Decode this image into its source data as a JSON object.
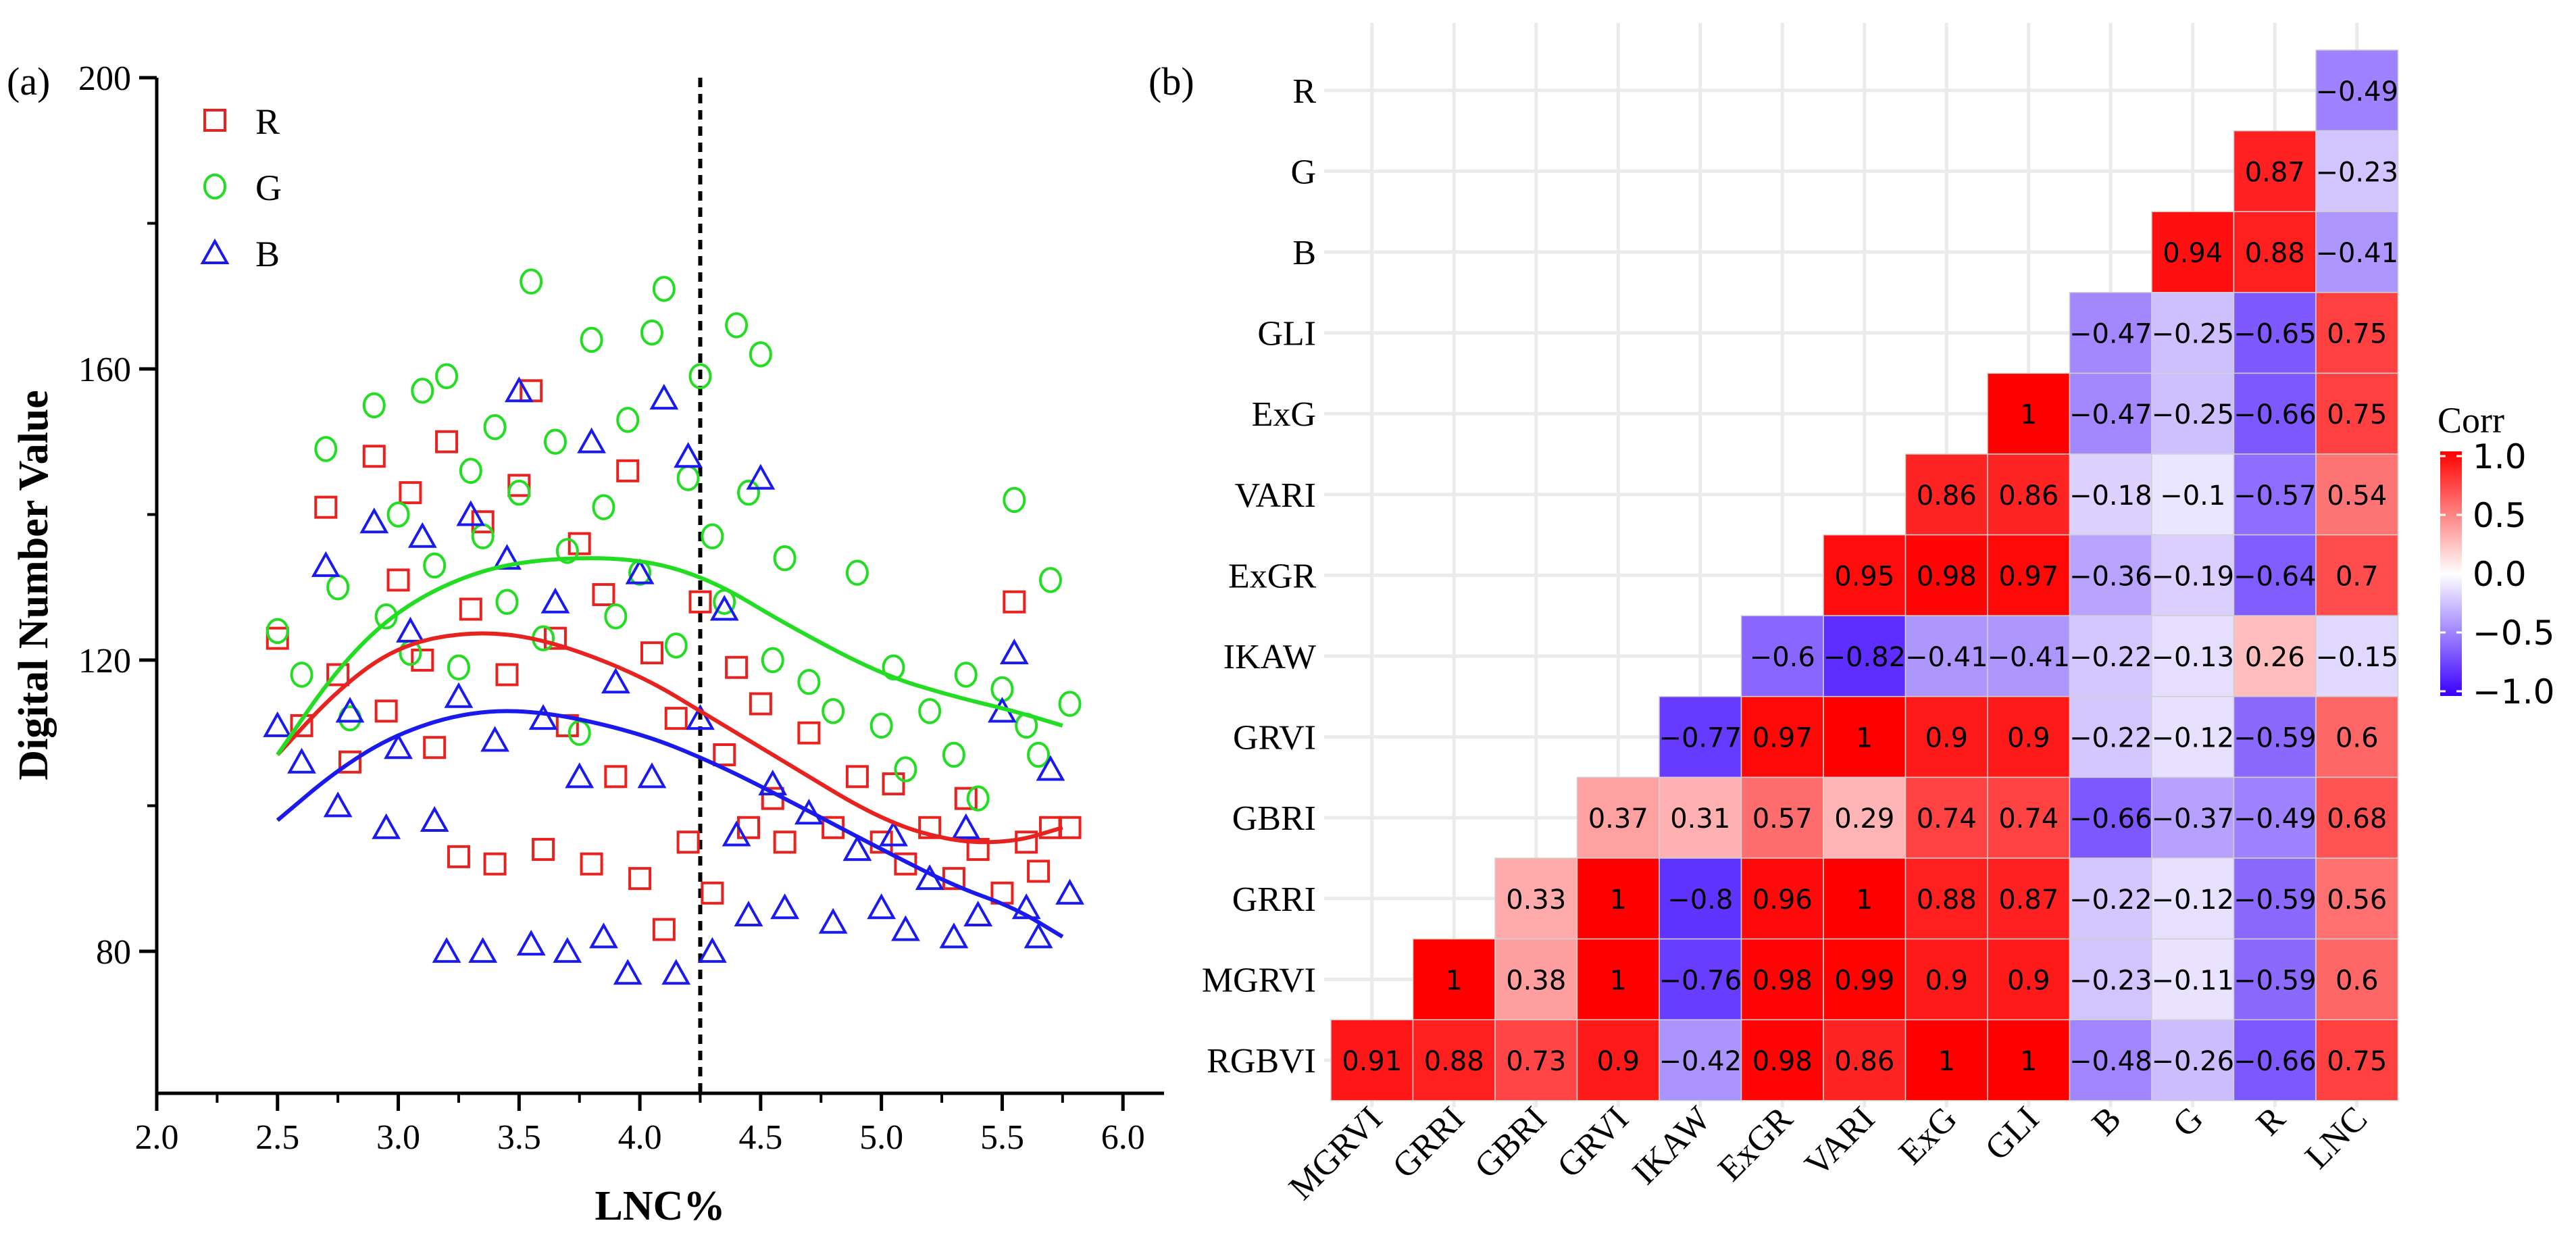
{
  "chart_data": [
    {
      "type": "scatter",
      "panel_label": "(a)",
      "title": "",
      "xlabel": "LNC%",
      "ylabel": "Digital Number Value",
      "xlim": [
        2.0,
        6.17
      ],
      "ylim": [
        60.5,
        200
      ],
      "xticks": [
        "2.0",
        "2.5",
        "3.0",
        "3.5",
        "4.0",
        "4.5",
        "5.0",
        "5.5",
        "6.0"
      ],
      "yticks": [
        "80",
        "120",
        "160",
        "200"
      ],
      "reference_line_x": 4.25,
      "legend": [
        "R",
        "G",
        "B"
      ],
      "legend_placement": "top-left",
      "series": [
        {
          "name": "R",
          "color": "#e8221f",
          "marker": "square",
          "points": [
            [
              2.5,
              123
            ],
            [
              2.6,
              111
            ],
            [
              2.7,
              141
            ],
            [
              2.75,
              118
            ],
            [
              2.8,
              106
            ],
            [
              2.9,
              148
            ],
            [
              2.95,
              113
            ],
            [
              3.0,
              131
            ],
            [
              3.05,
              143
            ],
            [
              3.1,
              120
            ],
            [
              3.15,
              108
            ],
            [
              3.2,
              150
            ],
            [
              3.25,
              93
            ],
            [
              3.3,
              127
            ],
            [
              3.35,
              139
            ],
            [
              3.4,
              92
            ],
            [
              3.45,
              118
            ],
            [
              3.5,
              144
            ],
            [
              3.55,
              157
            ],
            [
              3.6,
              94
            ],
            [
              3.65,
              123
            ],
            [
              3.7,
              111
            ],
            [
              3.75,
              136
            ],
            [
              3.8,
              92
            ],
            [
              3.85,
              129
            ],
            [
              3.9,
              104
            ],
            [
              3.95,
              146
            ],
            [
              4.0,
              90
            ],
            [
              4.05,
              121
            ],
            [
              4.1,
              83
            ],
            [
              4.15,
              112
            ],
            [
              4.2,
              95
            ],
            [
              4.25,
              128
            ],
            [
              4.3,
              88
            ],
            [
              4.35,
              107
            ],
            [
              4.4,
              119
            ],
            [
              4.45,
              97
            ],
            [
              4.5,
              114
            ],
            [
              4.55,
              101
            ],
            [
              4.6,
              95
            ],
            [
              4.7,
              110
            ],
            [
              4.8,
              97
            ],
            [
              4.9,
              104
            ],
            [
              5.0,
              95
            ],
            [
              5.05,
              103
            ],
            [
              5.1,
              92
            ],
            [
              5.2,
              97
            ],
            [
              5.3,
              90
            ],
            [
              5.35,
              101
            ],
            [
              5.4,
              94
            ],
            [
              5.5,
              88
            ],
            [
              5.55,
              128
            ],
            [
              5.6,
              95
            ],
            [
              5.65,
              91
            ],
            [
              5.7,
              97
            ],
            [
              5.78,
              97
            ]
          ],
          "fit": [
            [
              2.5,
              107
            ],
            [
              2.75,
              116
            ],
            [
              3.0,
              122
            ],
            [
              3.3,
              124
            ],
            [
              3.6,
              123
            ],
            [
              4.0,
              118
            ],
            [
              4.3,
              112
            ],
            [
              4.6,
              106
            ],
            [
              5.0,
              98
            ],
            [
              5.3,
              95
            ],
            [
              5.55,
              95
            ],
            [
              5.75,
              97
            ]
          ]
        },
        {
          "name": "G",
          "color": "#22dd22",
          "marker": "circle",
          "points": [
            [
              2.5,
              124
            ],
            [
              2.6,
              118
            ],
            [
              2.7,
              149
            ],
            [
              2.75,
              130
            ],
            [
              2.8,
              112
            ],
            [
              2.9,
              155
            ],
            [
              2.95,
              126
            ],
            [
              3.0,
              140
            ],
            [
              3.05,
              121
            ],
            [
              3.1,
              157
            ],
            [
              3.15,
              133
            ],
            [
              3.2,
              159
            ],
            [
              3.25,
              119
            ],
            [
              3.3,
              146
            ],
            [
              3.35,
              137
            ],
            [
              3.4,
              152
            ],
            [
              3.45,
              128
            ],
            [
              3.5,
              143
            ],
            [
              3.55,
              172
            ],
            [
              3.6,
              123
            ],
            [
              3.65,
              150
            ],
            [
              3.7,
              135
            ],
            [
              3.75,
              110
            ],
            [
              3.8,
              164
            ],
            [
              3.85,
              141
            ],
            [
              3.9,
              126
            ],
            [
              3.95,
              153
            ],
            [
              4.0,
              132
            ],
            [
              4.05,
              165
            ],
            [
              4.1,
              171
            ],
            [
              4.15,
              122
            ],
            [
              4.2,
              145
            ],
            [
              4.25,
              159
            ],
            [
              4.3,
              137
            ],
            [
              4.35,
              128
            ],
            [
              4.4,
              166
            ],
            [
              4.45,
              143
            ],
            [
              4.5,
              162
            ],
            [
              4.55,
              120
            ],
            [
              4.6,
              134
            ],
            [
              4.7,
              117
            ],
            [
              4.8,
              113
            ],
            [
              4.9,
              132
            ],
            [
              5.0,
              111
            ],
            [
              5.05,
              119
            ],
            [
              5.1,
              105
            ],
            [
              5.2,
              113
            ],
            [
              5.3,
              107
            ],
            [
              5.35,
              118
            ],
            [
              5.4,
              101
            ],
            [
              5.5,
              116
            ],
            [
              5.55,
              142
            ],
            [
              5.6,
              111
            ],
            [
              5.65,
              107
            ],
            [
              5.7,
              131
            ],
            [
              5.78,
              114
            ]
          ],
          "fit": [
            [
              2.5,
              107
            ],
            [
              2.75,
              119
            ],
            [
              3.0,
              127
            ],
            [
              3.3,
              132
            ],
            [
              3.6,
              134
            ],
            [
              4.0,
              134
            ],
            [
              4.3,
              131
            ],
            [
              4.6,
              125
            ],
            [
              5.0,
              118
            ],
            [
              5.3,
              115
            ],
            [
              5.55,
              113
            ],
            [
              5.75,
              111
            ]
          ]
        },
        {
          "name": "B",
          "color": "#1a1aee",
          "marker": "triangle",
          "points": [
            [
              2.5,
              111
            ],
            [
              2.6,
              106
            ],
            [
              2.7,
              133
            ],
            [
              2.75,
              100
            ],
            [
              2.8,
              113
            ],
            [
              2.9,
              139
            ],
            [
              2.95,
              97
            ],
            [
              3.0,
              108
            ],
            [
              3.05,
              124
            ],
            [
              3.1,
              137
            ],
            [
              3.15,
              98
            ],
            [
              3.2,
              80
            ],
            [
              3.25,
              115
            ],
            [
              3.3,
              140
            ],
            [
              3.35,
              80
            ],
            [
              3.4,
              109
            ],
            [
              3.45,
              134
            ],
            [
              3.5,
              157
            ],
            [
              3.55,
              81
            ],
            [
              3.6,
              112
            ],
            [
              3.65,
              128
            ],
            [
              3.7,
              80
            ],
            [
              3.75,
              104
            ],
            [
              3.8,
              150
            ],
            [
              3.85,
              82
            ],
            [
              3.9,
              117
            ],
            [
              3.95,
              77
            ],
            [
              4.0,
              132
            ],
            [
              4.05,
              104
            ],
            [
              4.1,
              156
            ],
            [
              4.15,
              77
            ],
            [
              4.2,
              148
            ],
            [
              4.25,
              112
            ],
            [
              4.3,
              80
            ],
            [
              4.35,
              127
            ],
            [
              4.4,
              96
            ],
            [
              4.45,
              85
            ],
            [
              4.5,
              145
            ],
            [
              4.55,
              103
            ],
            [
              4.6,
              86
            ],
            [
              4.7,
              99
            ],
            [
              4.8,
              84
            ],
            [
              4.9,
              94
            ],
            [
              5.0,
              86
            ],
            [
              5.05,
              96
            ],
            [
              5.1,
              83
            ],
            [
              5.2,
              90
            ],
            [
              5.3,
              82
            ],
            [
              5.35,
              97
            ],
            [
              5.4,
              85
            ],
            [
              5.5,
              113
            ],
            [
              5.55,
              121
            ],
            [
              5.6,
              86
            ],
            [
              5.65,
              82
            ],
            [
              5.7,
              105
            ],
            [
              5.78,
              88
            ]
          ],
          "fit": [
            [
              2.5,
              98
            ],
            [
              2.75,
              105
            ],
            [
              3.0,
              110
            ],
            [
              3.3,
              113
            ],
            [
              3.6,
              113
            ],
            [
              4.0,
              110
            ],
            [
              4.3,
              106
            ],
            [
              4.6,
              101
            ],
            [
              5.0,
              94
            ],
            [
              5.3,
              89
            ],
            [
              5.55,
              86
            ],
            [
              5.75,
              82
            ]
          ]
        }
      ]
    },
    {
      "type": "heatmap",
      "panel_label": "(b)",
      "title": "",
      "rows": [
        "R",
        "G",
        "B",
        "GLI",
        "ExG",
        "VARI",
        "ExGR",
        "IKAW",
        "GRVI",
        "GBRI",
        "GRRI",
        "MGRVI",
        "RGBVI"
      ],
      "columns": [
        "MGRVI",
        "GRRI",
        "GBRI",
        "GRVI",
        "IKAW",
        "ExGR",
        "VARI",
        "ExG",
        "GLI",
        "B",
        "G",
        "R",
        "LNC"
      ],
      "values": [
        [
          null,
          null,
          null,
          null,
          null,
          null,
          null,
          null,
          null,
          null,
          null,
          null,
          -0.49
        ],
        [
          null,
          null,
          null,
          null,
          null,
          null,
          null,
          null,
          null,
          null,
          null,
          0.87,
          -0.23
        ],
        [
          null,
          null,
          null,
          null,
          null,
          null,
          null,
          null,
          null,
          null,
          0.94,
          0.88,
          -0.41
        ],
        [
          null,
          null,
          null,
          null,
          null,
          null,
          null,
          null,
          null,
          -0.47,
          -0.25,
          -0.65,
          0.75
        ],
        [
          null,
          null,
          null,
          null,
          null,
          null,
          null,
          null,
          1,
          -0.47,
          -0.25,
          -0.66,
          0.75
        ],
        [
          null,
          null,
          null,
          null,
          null,
          null,
          null,
          0.86,
          0.86,
          -0.18,
          -0.1,
          -0.57,
          0.54
        ],
        [
          null,
          null,
          null,
          null,
          null,
          null,
          0.95,
          0.98,
          0.97,
          -0.36,
          -0.19,
          -0.64,
          0.7
        ],
        [
          null,
          null,
          null,
          null,
          null,
          -0.6,
          -0.82,
          -0.41,
          -0.41,
          -0.22,
          -0.13,
          0.26,
          -0.15
        ],
        [
          null,
          null,
          null,
          null,
          -0.77,
          0.97,
          1,
          0.9,
          0.9,
          -0.22,
          -0.12,
          -0.59,
          0.6
        ],
        [
          null,
          null,
          null,
          0.37,
          0.31,
          0.57,
          0.29,
          0.74,
          0.74,
          -0.66,
          -0.37,
          -0.49,
          0.68
        ],
        [
          null,
          null,
          0.33,
          1,
          -0.8,
          0.96,
          1,
          0.88,
          0.87,
          -0.22,
          -0.12,
          -0.59,
          0.56
        ],
        [
          null,
          1,
          0.38,
          1,
          -0.76,
          0.98,
          0.99,
          0.9,
          0.9,
          -0.23,
          -0.11,
          -0.59,
          0.6
        ],
        [
          0.91,
          0.88,
          0.73,
          0.9,
          -0.42,
          0.98,
          0.86,
          1,
          1,
          -0.48,
          -0.26,
          -0.66,
          0.75
        ]
      ],
      "legend": {
        "title": "Corr",
        "ticks": [
          "1.0",
          "0.5",
          "0.0",
          "−0.5",
          "−1.0"
        ],
        "range": [
          -1,
          1
        ],
        "placement": "right"
      },
      "colors": {
        "positive": "#ff0000",
        "zero": "#ffffff",
        "negative": "#3a00ff"
      }
    }
  ]
}
